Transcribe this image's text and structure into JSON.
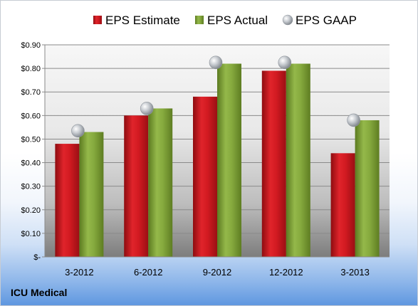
{
  "footer_label": "ICU Medical",
  "colors": {
    "estimate": "#c8161d",
    "actual": "#7a9b32",
    "gaap": "#b9bfc6"
  },
  "chart_data": {
    "type": "bar",
    "title": "",
    "xlabel": "",
    "ylabel": "",
    "categories": [
      "3-2012",
      "6-2012",
      "9-2012",
      "12-2012",
      "3-2013"
    ],
    "series": [
      {
        "name": "EPS Estimate",
        "type": "bar",
        "values": [
          0.48,
          0.6,
          0.68,
          0.79,
          0.44
        ]
      },
      {
        "name": "EPS Actual",
        "type": "bar",
        "values": [
          0.53,
          0.63,
          0.82,
          0.82,
          0.58
        ]
      },
      {
        "name": "EPS GAAP",
        "type": "scatter",
        "values": [
          0.535,
          0.63,
          0.825,
          0.825,
          0.58
        ]
      }
    ],
    "ylim": [
      0,
      0.9
    ],
    "yticks": [
      0,
      0.1,
      0.2,
      0.3,
      0.4,
      0.5,
      0.6,
      0.7,
      0.8,
      0.9
    ],
    "ytick_labels": [
      "$-",
      "$0.10",
      "$0.20",
      "$0.30",
      "$0.40",
      "$0.50",
      "$0.60",
      "$0.70",
      "$0.80",
      "$0.90"
    ],
    "grid": true,
    "legend": "top"
  }
}
